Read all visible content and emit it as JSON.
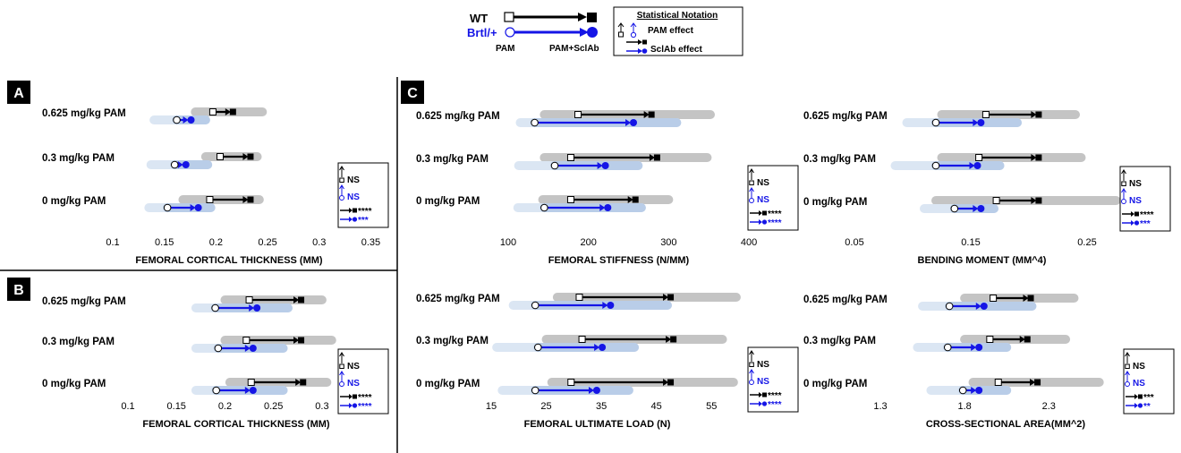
{
  "legend": {
    "wt_label": "WT",
    "brtl_label": "Brtl/+",
    "pam_label": "PAM",
    "pam_sclab_label": "PAM+SclAb",
    "stat_title": "Statistical Notation",
    "pam_effect": "PAM effect",
    "sclab_effect": "SclAb effect"
  },
  "colors": {
    "wt": "#000000",
    "brtl": "#1515e6",
    "wt_band": "#c4c4c4",
    "brtl_band": "#b9cde8",
    "brtl_band_light": "#dbe6f3"
  },
  "chart_data": [
    {
      "panel": "A",
      "type": "dumbbell",
      "xlabel": "FEMORAL CORTICAL THICKNESS (MM)",
      "xlim": [
        0.1,
        0.36
      ],
      "ticks": [
        "0.1",
        "0.15",
        "0.2",
        "0.25",
        "0.3",
        "0.35"
      ],
      "categories": [
        "0.625 mg/kg PAM",
        "0.3 mg/kg PAM",
        "0 mg/kg PAM"
      ],
      "series": [
        {
          "name": "WT",
          "pam": [
            0.197,
            0.204,
            0.194
          ],
          "pam_sclab": [
            0.216,
            0.233,
            0.233
          ],
          "band": [
            [
              0.18,
              0.245
            ],
            [
              0.19,
              0.24
            ],
            [
              0.168,
              0.242
            ]
          ]
        },
        {
          "name": "Brtl/+",
          "pam": [
            0.162,
            0.16,
            0.153
          ],
          "pam_sclab": [
            0.175,
            0.17,
            0.182
          ],
          "band": [
            [
              0.14,
              0.19
            ],
            [
              0.137,
              0.192
            ],
            [
              0.135,
              0.195
            ]
          ]
        }
      ],
      "stats": {
        "pam_wt": "NS",
        "pam_brtl": "NS",
        "sclab_wt": "****",
        "sclab_brtl": "***"
      }
    },
    {
      "panel": "B",
      "type": "dumbbell",
      "xlabel": "FEMORAL CORTICAL THICKNESS (MM)",
      "xlim": [
        0.1,
        0.36
      ],
      "ticks": [
        "0.1",
        "0.15",
        "0.2",
        "0.25",
        "0.3",
        "0.35"
      ],
      "categories": [
        "0.625 mg/kg PAM",
        "0.3 mg/kg PAM",
        "0 mg/kg PAM"
      ],
      "series": [
        {
          "name": "WT",
          "pam": [
            0.225,
            0.222,
            0.227
          ],
          "pam_sclab": [
            0.278,
            0.278,
            0.28
          ],
          "band": [
            [
              0.2,
              0.3
            ],
            [
              0.2,
              0.31
            ],
            [
              0.205,
              0.305
            ]
          ]
        },
        {
          "name": "Brtl/+",
          "pam": [
            0.19,
            0.193,
            0.191
          ],
          "pam_sclab": [
            0.232,
            0.228,
            0.228
          ],
          "band": [
            [
              0.17,
              0.265
            ],
            [
              0.17,
              0.26
            ],
            [
              0.17,
              0.26
            ]
          ]
        }
      ],
      "stats": {
        "pam_wt": "NS",
        "pam_brtl": "NS",
        "sclab_wt": "****",
        "sclab_brtl": "****"
      }
    },
    {
      "panel": "C",
      "type": "dumbbell",
      "xlabel": "FEMORAL STIFFNESS (N/MM)",
      "xlim": [
        100,
        420
      ],
      "ticks": [
        "100",
        "200",
        "300",
        "400"
      ],
      "categories": [
        "0.625 mg/kg PAM",
        "0.3 mg/kg PAM",
        "0 mg/kg PAM"
      ],
      "series": [
        {
          "name": "WT",
          "pam": [
            187,
            178,
            178
          ],
          "pam_sclab": [
            278,
            285,
            258
          ],
          "band": [
            [
              145,
              352
            ],
            [
              145,
              348
            ],
            [
              143,
              300
            ]
          ]
        },
        {
          "name": "Brtl/+",
          "pam": [
            133,
            158,
            145
          ],
          "pam_sclab": [
            255,
            220,
            223
          ],
          "band": [
            [
              115,
              310
            ],
            [
              113,
              262
            ],
            [
              112,
              266
            ]
          ]
        }
      ],
      "stats": {
        "pam_wt": "NS",
        "pam_brtl": "NS",
        "sclab_wt": "****",
        "sclab_brtl": "****"
      }
    },
    {
      "panel": "C",
      "type": "dumbbell",
      "xlabel": "BENDING MOMENT (MM^4)",
      "xlim": [
        0.05,
        0.3
      ],
      "ticks": [
        "0.05",
        "0.15",
        "0.25"
      ],
      "categories": [
        "0.625 mg/kg PAM",
        "0.3 mg/kg PAM",
        "0 mg/kg PAM"
      ],
      "series": [
        {
          "name": "WT",
          "pam": [
            0.163,
            0.157,
            0.172
          ],
          "pam_sclab": [
            0.208,
            0.208,
            0.208
          ],
          "band": [
            [
              0.125,
              0.24
            ],
            [
              0.125,
              0.245
            ],
            [
              0.12,
              0.275
            ]
          ]
        },
        {
          "name": "Brtl/+",
          "pam": [
            0.12,
            0.12,
            0.136
          ],
          "pam_sclab": [
            0.158,
            0.155,
            0.158
          ],
          "band": [
            [
              0.095,
              0.19
            ],
            [
              0.085,
              0.175
            ],
            [
              0.11,
              0.17
            ]
          ]
        }
      ],
      "stats": {
        "pam_wt": "NS",
        "pam_brtl": "NS",
        "sclab_wt": "****",
        "sclab_brtl": "***"
      }
    },
    {
      "panel": "C",
      "type": "dumbbell",
      "xlabel": "FEMORAL ULTIMATE LOAD (N)",
      "xlim": [
        15,
        60
      ],
      "ticks": [
        "15",
        "25",
        "35",
        "45",
        "55"
      ],
      "categories": [
        "0.625 mg/kg PAM",
        "0.3 mg/kg PAM",
        "0 mg/kg PAM"
      ],
      "series": [
        {
          "name": "WT",
          "pam": [
            31,
            31.5,
            29.5
          ],
          "pam_sclab": [
            47.5,
            48,
            47.5
          ],
          "band": [
            [
              27,
              59.5
            ],
            [
              25,
              57
            ],
            [
              26,
              59
            ]
          ]
        },
        {
          "name": "Brtl/+",
          "pam": [
            23,
            23.5,
            23
          ],
          "pam_sclab": [
            36.5,
            35,
            34
          ],
          "band": [
            [
              19,
              47
            ],
            [
              16,
              41
            ],
            [
              17,
              40
            ]
          ]
        }
      ],
      "stats": {
        "pam_wt": "NS",
        "pam_brtl": "NS",
        "sclab_wt": "****",
        "sclab_brtl": "****"
      }
    },
    {
      "panel": "C",
      "type": "dumbbell",
      "xlabel": "CROSS-SECTIONAL AREA(MM^2)",
      "xlim": [
        1.3,
        3.0
      ],
      "ticks": [
        "1.3",
        "1.8",
        "2.3",
        "2.8"
      ],
      "categories": [
        "0.625 mg/kg PAM",
        "0.3 mg/kg PAM",
        "0 mg/kg PAM"
      ],
      "series": [
        {
          "name": "WT",
          "pam": [
            1.97,
            1.95,
            2.0
          ],
          "pam_sclab": [
            2.19,
            2.17,
            2.23
          ],
          "band": [
            [
              1.8,
              2.45
            ],
            [
              1.8,
              2.4
            ],
            [
              1.85,
              2.6
            ]
          ]
        },
        {
          "name": "Brtl/+",
          "pam": [
            1.71,
            1.7,
            1.79
          ],
          "pam_sclab": [
            1.91,
            1.88,
            1.88
          ],
          "band": [
            [
              1.55,
              2.2
            ],
            [
              1.52,
              2.05
            ],
            [
              1.6,
              2.05
            ]
          ]
        }
      ],
      "stats": {
        "pam_wt": "NS",
        "pam_brtl": "NS",
        "sclab_wt": "***",
        "sclab_brtl": "**"
      }
    }
  ]
}
